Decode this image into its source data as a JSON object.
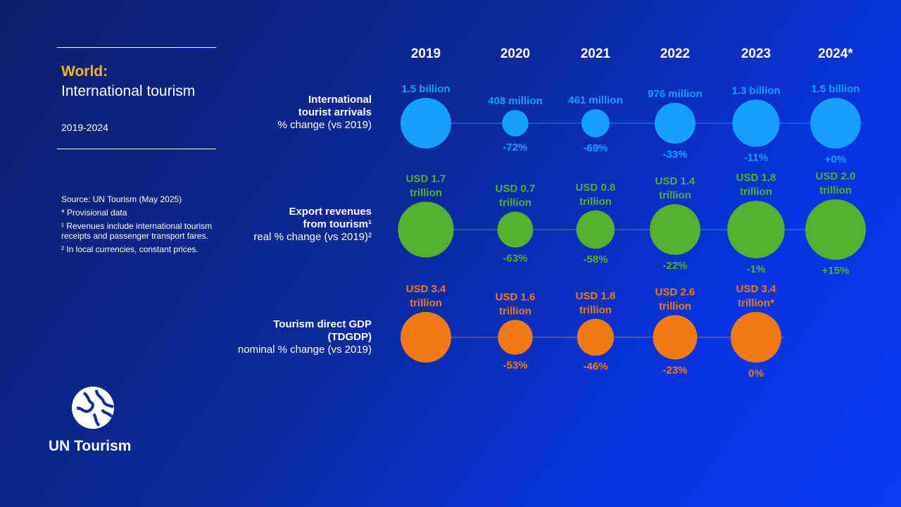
{
  "title": {
    "line1": "World:",
    "line2": "International tourism",
    "period": "2019-2024"
  },
  "notes": [
    "Source: UN Tourism (May 2025)",
    "* Provisional data",
    "¹ Revenues include international tourism receipts and passenger transport fares.",
    "² In local currencies, constant prices."
  ],
  "brand": {
    "name": "UN Tourism"
  },
  "colors": {
    "arrivals": "#14a0ff",
    "revenues": "#55b030",
    "gdp": "#f07a10",
    "title_accent": "#fbb614"
  },
  "chart_data": {
    "type": "bubble",
    "categories": [
      "2019",
      "2020",
      "2021",
      "2022",
      "2023",
      "2024*"
    ],
    "series": [
      {
        "name": "International tourist arrivals",
        "label_lines": [
          "International",
          "tourist arrivals",
          "% change (vs 2019)"
        ],
        "values": [
          1.5,
          0.408,
          0.461,
          0.976,
          1.3,
          1.5
        ],
        "unit": "billion arrivals",
        "value_labels": [
          [
            "1.5 billion"
          ],
          [
            "408 million"
          ],
          [
            "461 million"
          ],
          [
            "976 million"
          ],
          [
            "1.3 billion"
          ],
          [
            "1.5 billion"
          ]
        ],
        "change_labels": [
          "",
          "-72%",
          "-69%",
          "-33%",
          "-11%",
          "+0%"
        ]
      },
      {
        "name": "Export revenues from tourism",
        "label_lines": [
          "Export revenues",
          "from tourism¹",
          "real % change (vs 2019)²"
        ],
        "values": [
          1.7,
          0.7,
          0.8,
          1.4,
          1.8,
          2.0
        ],
        "unit": "USD trillion",
        "value_labels": [
          [
            "USD 1.7",
            "trillion"
          ],
          [
            "USD 0.7",
            "trillion"
          ],
          [
            "USD 0.8",
            "trillion"
          ],
          [
            "USD 1.4",
            "trillion"
          ],
          [
            "USD 1.8",
            "trillion"
          ],
          [
            "USD 2.0",
            "trillion"
          ]
        ],
        "change_labels": [
          "",
          "-63%",
          "-58%",
          "-22%",
          "-1%",
          "+15%"
        ]
      },
      {
        "name": "Tourism direct GDP (TDGDP)",
        "label_lines": [
          "Tourism direct GDP",
          "(TDGDP)",
          "nominal % change (vs 2019)"
        ],
        "values": [
          3.4,
          1.6,
          1.8,
          2.6,
          3.4,
          null
        ],
        "unit": "USD trillion",
        "value_labels": [
          [
            "USD 3.4",
            "trillion"
          ],
          [
            "USD 1.6",
            "trillion"
          ],
          [
            "USD 1.8",
            "trillion"
          ],
          [
            "USD 2.6",
            "trillion"
          ],
          [
            "USD 3.4",
            "trillion*"
          ],
          null
        ],
        "change_labels": [
          "",
          "-53%",
          "-46%",
          "-23%",
          "0%",
          ""
        ]
      }
    ]
  }
}
